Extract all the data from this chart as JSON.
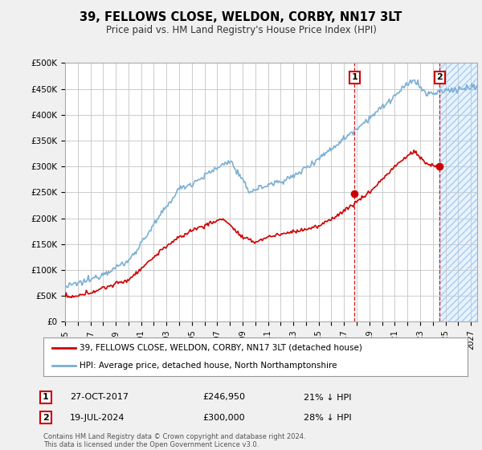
{
  "title": "39, FELLOWS CLOSE, WELDON, CORBY, NN17 3LT",
  "subtitle": "Price paid vs. HM Land Registry's House Price Index (HPI)",
  "ylabel_ticks": [
    "£0",
    "£50K",
    "£100K",
    "£150K",
    "£200K",
    "£250K",
    "£300K",
    "£350K",
    "£400K",
    "£450K",
    "£500K"
  ],
  "ytick_values": [
    0,
    50000,
    100000,
    150000,
    200000,
    250000,
    300000,
    350000,
    400000,
    450000,
    500000
  ],
  "ylim": [
    0,
    500000
  ],
  "xlim_start": 1995.0,
  "xlim_end": 2027.5,
  "marker1_x": 2017.82,
  "marker1_y": 246950,
  "marker2_x": 2024.54,
  "marker2_y": 300000,
  "marker1_date": "27-OCT-2017",
  "marker1_price": "£246,950",
  "marker1_pct": "21% ↓ HPI",
  "marker2_date": "19-JUL-2024",
  "marker2_price": "£300,000",
  "marker2_pct": "28% ↓ HPI",
  "legend_label1": "39, FELLOWS CLOSE, WELDON, CORBY, NN17 3LT (detached house)",
  "legend_label2": "HPI: Average price, detached house, North Northamptonshire",
  "line1_color": "#cc0000",
  "line2_color": "#7ab0d4",
  "shade_color": "#ddeeff",
  "shade_start": 2024.54,
  "shade_end": 2027.5,
  "dashed_line_color": "#cc0000",
  "footer": "Contains HM Land Registry data © Crown copyright and database right 2024.\nThis data is licensed under the Open Government Licence v3.0.",
  "bg_color": "#f0f0f0",
  "plot_bg": "#ffffff",
  "grid_color": "#cccccc"
}
